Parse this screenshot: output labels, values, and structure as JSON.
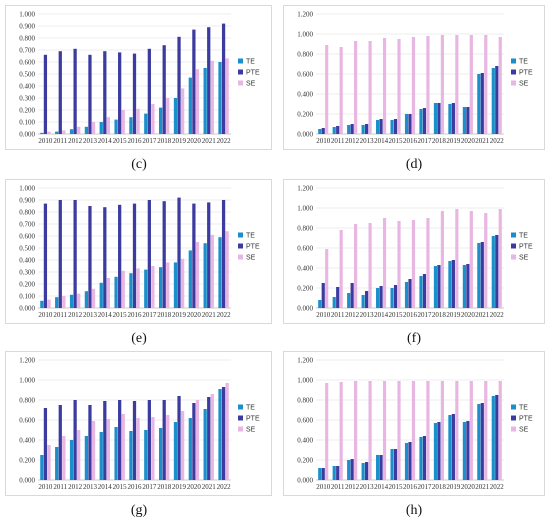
{
  "colors": {
    "TE": "#1b8fc9",
    "PTE": "#3c3ca0",
    "SE": "#e8b6e2",
    "grid": "#dcdcdc"
  },
  "charts": [
    {
      "id": "c",
      "caption": "(c)",
      "chart_data": {
        "type": "bar",
        "categories": [
          "2010",
          "2011",
          "2012",
          "2013",
          "2014",
          "2015",
          "2016",
          "2017",
          "2018",
          "2019",
          "2020",
          "2021",
          "2022"
        ],
        "ylim": [
          0,
          1.0
        ],
        "yticks": [
          "0.000",
          "0.100",
          "0.200",
          "0.300",
          "0.400",
          "0.500",
          "0.600",
          "0.700",
          "0.800",
          "0.900",
          "1.000"
        ],
        "series": [
          {
            "name": "TE",
            "values": [
              0.01,
              0.02,
              0.04,
              0.06,
              0.1,
              0.12,
              0.14,
              0.17,
              0.22,
              0.3,
              0.47,
              0.55,
              0.6
            ]
          },
          {
            "name": "PTE",
            "values": [
              0.66,
              0.69,
              0.71,
              0.66,
              0.69,
              0.68,
              0.67,
              0.71,
              0.74,
              0.81,
              0.87,
              0.89,
              0.92
            ]
          },
          {
            "name": "SE",
            "values": [
              0.02,
              0.03,
              0.06,
              0.1,
              0.14,
              0.2,
              0.21,
              0.25,
              0.3,
              0.38,
              0.54,
              0.61,
              0.63
            ]
          }
        ]
      }
    },
    {
      "id": "d",
      "caption": "(d)",
      "chart_data": {
        "type": "bar",
        "categories": [
          "2010",
          "2011",
          "2012",
          "2013",
          "2014",
          "2015",
          "2016",
          "2017",
          "2018",
          "2019",
          "2020",
          "2021",
          "2022"
        ],
        "ylim": [
          0,
          1.2
        ],
        "yticks": [
          "0.000",
          "0.200",
          "0.400",
          "0.600",
          "0.800",
          "1.000",
          "1.200"
        ],
        "series": [
          {
            "name": "TE",
            "values": [
              0.05,
              0.07,
              0.09,
              0.09,
              0.14,
              0.14,
              0.2,
              0.25,
              0.31,
              0.3,
              0.27,
              0.6,
              0.66
            ]
          },
          {
            "name": "PTE",
            "values": [
              0.06,
              0.08,
              0.1,
              0.1,
              0.15,
              0.15,
              0.2,
              0.26,
              0.31,
              0.31,
              0.27,
              0.61,
              0.68
            ]
          },
          {
            "name": "SE",
            "values": [
              0.89,
              0.87,
              0.93,
              0.93,
              0.96,
              0.95,
              0.97,
              0.98,
              0.99,
              0.99,
              0.99,
              0.99,
              0.97
            ]
          }
        ]
      }
    },
    {
      "id": "e",
      "caption": "(e)",
      "chart_data": {
        "type": "bar",
        "categories": [
          "2010",
          "2011",
          "2012",
          "2013",
          "2014",
          "2015",
          "2016",
          "2017",
          "2018",
          "2019",
          "2020",
          "2021",
          "2022"
        ],
        "ylim": [
          0,
          1.0
        ],
        "yticks": [
          "0.000",
          "0.100",
          "0.200",
          "0.300",
          "0.400",
          "0.500",
          "0.600",
          "0.700",
          "0.800",
          "0.900",
          "1.000"
        ],
        "series": [
          {
            "name": "TE",
            "values": [
              0.06,
              0.09,
              0.11,
              0.14,
              0.21,
              0.26,
              0.29,
              0.32,
              0.34,
              0.38,
              0.48,
              0.54,
              0.59
            ]
          },
          {
            "name": "PTE",
            "values": [
              0.87,
              0.9,
              0.9,
              0.85,
              0.84,
              0.86,
              0.87,
              0.9,
              0.89,
              0.92,
              0.87,
              0.88,
              0.9
            ]
          },
          {
            "name": "SE",
            "values": [
              0.07,
              0.1,
              0.12,
              0.16,
              0.25,
              0.31,
              0.33,
              0.35,
              0.38,
              0.41,
              0.55,
              0.61,
              0.64
            ]
          }
        ]
      }
    },
    {
      "id": "f",
      "caption": "(f)",
      "chart_data": {
        "type": "bar",
        "categories": [
          "2010",
          "2011",
          "2012",
          "2013",
          "2014",
          "2015",
          "2016",
          "2017",
          "2018",
          "2019",
          "2020",
          "2021",
          "2022"
        ],
        "ylim": [
          0,
          1.2
        ],
        "yticks": [
          "0.000",
          "0.200",
          "0.400",
          "0.600",
          "0.800",
          "1.000",
          "1.200"
        ],
        "series": [
          {
            "name": "TE",
            "values": [
              0.08,
              0.11,
              0.15,
              0.13,
              0.2,
              0.2,
              0.26,
              0.32,
              0.42,
              0.47,
              0.43,
              0.65,
              0.72
            ]
          },
          {
            "name": "PTE",
            "values": [
              0.25,
              0.21,
              0.25,
              0.17,
              0.22,
              0.23,
              0.29,
              0.34,
              0.43,
              0.48,
              0.44,
              0.66,
              0.73
            ]
          },
          {
            "name": "SE",
            "values": [
              0.59,
              0.78,
              0.84,
              0.85,
              0.9,
              0.87,
              0.88,
              0.9,
              0.97,
              0.99,
              0.97,
              0.95,
              0.99
            ]
          }
        ]
      }
    },
    {
      "id": "g",
      "caption": "(g)",
      "chart_data": {
        "type": "bar",
        "categories": [
          "2010",
          "2011",
          "2012",
          "2013",
          "2014",
          "2015",
          "2016",
          "2017",
          "2018",
          "2019",
          "2020",
          "2021",
          "2022"
        ],
        "ylim": [
          0,
          1.2
        ],
        "yticks": [
          "0.000",
          "0.200",
          "0.400",
          "0.600",
          "0.800",
          "1.000",
          "1.200"
        ],
        "series": [
          {
            "name": "TE",
            "values": [
              0.25,
              0.33,
              0.4,
              0.44,
              0.48,
              0.53,
              0.49,
              0.5,
              0.52,
              0.58,
              0.62,
              0.71,
              0.91
            ]
          },
          {
            "name": "PTE",
            "values": [
              0.72,
              0.75,
              0.8,
              0.75,
              0.79,
              0.8,
              0.79,
              0.8,
              0.8,
              0.84,
              0.77,
              0.83,
              0.93
            ]
          },
          {
            "name": "SE",
            "values": [
              0.35,
              0.44,
              0.5,
              0.59,
              0.61,
              0.66,
              0.62,
              0.63,
              0.65,
              0.69,
              0.8,
              0.86,
              0.97
            ]
          }
        ]
      }
    },
    {
      "id": "h",
      "caption": "(h)",
      "chart_data": {
        "type": "bar",
        "categories": [
          "2010",
          "2011",
          "2012",
          "2013",
          "2014",
          "2015",
          "2016",
          "2017",
          "2018",
          "2019",
          "2020",
          "2021",
          "2022"
        ],
        "ylim": [
          0,
          1.2
        ],
        "yticks": [
          "0.000",
          "0.200",
          "0.400",
          "0.600",
          "0.800",
          "1.000",
          "1.200"
        ],
        "series": [
          {
            "name": "TE",
            "values": [
              0.12,
              0.14,
              0.2,
              0.17,
              0.25,
              0.31,
              0.37,
              0.43,
              0.57,
              0.65,
              0.58,
              0.76,
              0.84
            ]
          },
          {
            "name": "PTE",
            "values": [
              0.12,
              0.14,
              0.21,
              0.18,
              0.25,
              0.31,
              0.38,
              0.44,
              0.58,
              0.66,
              0.59,
              0.77,
              0.85
            ]
          },
          {
            "name": "SE",
            "values": [
              0.97,
              0.98,
              0.99,
              0.99,
              0.99,
              0.99,
              0.99,
              0.99,
              0.99,
              0.99,
              0.99,
              0.99,
              0.99
            ]
          }
        ]
      }
    }
  ]
}
